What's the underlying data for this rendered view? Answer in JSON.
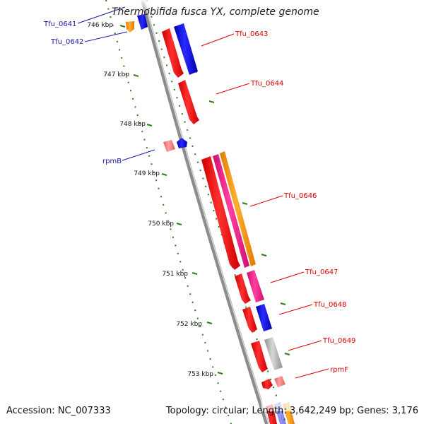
{
  "title": "Thermobifida fusca YX, complete genome",
  "footer": {
    "accession": "Accession: NC_007333",
    "summary": "Topology: circular; Length: 3,642,249 bp; Genes: 3,176"
  },
  "colors": {
    "backbone": "#8c8c8c",
    "tick": "#2e7d1a",
    "label_red": "#dd0000",
    "label_blue": "#1a1aa0",
    "gene_red": "#ff0000",
    "gene_blue": "#0000ff",
    "gene_orange": "#ff9900",
    "gene_magenta": "#ff1493",
    "gene_pink": "#f08080",
    "gene_grey": "#b0b0b0"
  },
  "scale_labels": [
    "746 kbp",
    "747 kbp",
    "748 kbp",
    "749 kbp",
    "750 kbp",
    "751 kbp",
    "752 kbp",
    "753 kbp"
  ],
  "gene_labels": {
    "tfu_0641": "Tfu_0641",
    "tfu_0642": "Tfu_0642",
    "tfu_0643": "Tfu_0643",
    "tfu_0644": "Tfu_0644",
    "rpmB": "rpmB",
    "tfu_0646": "Tfu_0646",
    "tfu_0647": "Tfu_0647",
    "tfu_0648": "Tfu_0648",
    "tfu_0649": "Tfu_0649",
    "rpmF": "rpmF"
  }
}
